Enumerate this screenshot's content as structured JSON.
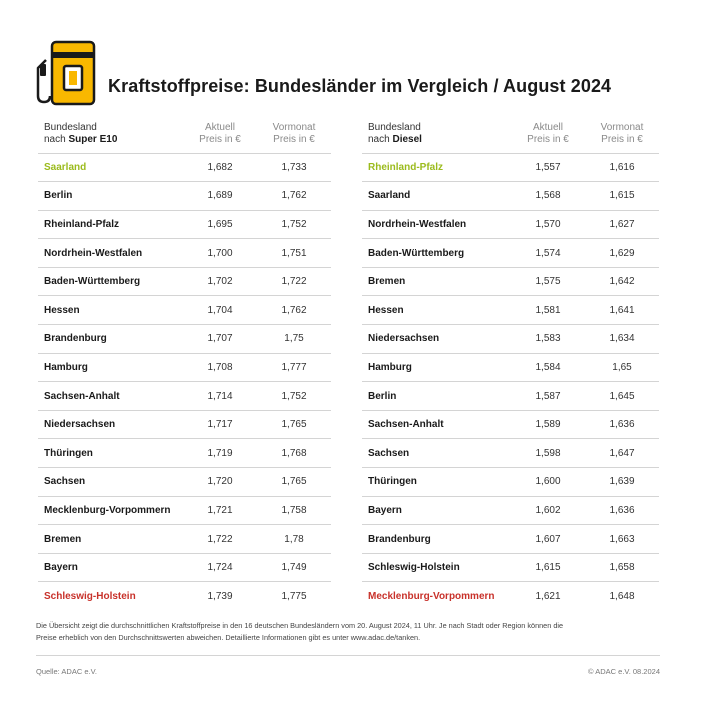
{
  "title": "Kraftstoffpreise: Bundesländer im Vergleich / August 2024",
  "colors": {
    "accent": "#F9B800",
    "best": "#9BBB1C",
    "worst": "#C8312A"
  },
  "icon": "fuel-pump-icon",
  "e10": {
    "header": {
      "line1": "Bundesland",
      "prefix": "nach ",
      "fuel": "Super E10",
      "current1": "Aktuell",
      "current2": "Preis in €",
      "prev1": "Vormonat",
      "prev2": "Preis in €"
    },
    "rows": [
      {
        "state": "Saarland",
        "current": "1,682",
        "previous": "1,733"
      },
      {
        "state": "Berlin",
        "current": "1,689",
        "previous": "1,762"
      },
      {
        "state": "Rheinland-Pfalz",
        "current": "1,695",
        "previous": "1,752"
      },
      {
        "state": "Nordrhein-Westfalen",
        "current": "1,700",
        "previous": "1,751"
      },
      {
        "state": "Baden-Württemberg",
        "current": "1,702",
        "previous": "1,722"
      },
      {
        "state": "Hessen",
        "current": "1,704",
        "previous": "1,762"
      },
      {
        "state": "Brandenburg",
        "current": "1,707",
        "previous": "1,75"
      },
      {
        "state": "Hamburg",
        "current": "1,708",
        "previous": "1,777"
      },
      {
        "state": "Sachsen-Anhalt",
        "current": "1,714",
        "previous": "1,752"
      },
      {
        "state": "Niedersachsen",
        "current": "1,717",
        "previous": "1,765"
      },
      {
        "state": "Thüringen",
        "current": "1,719",
        "previous": "1,768"
      },
      {
        "state": "Sachsen",
        "current": "1,720",
        "previous": "1,765"
      },
      {
        "state": "Mecklenburg-Vorpommern",
        "current": "1,721",
        "previous": "1,758"
      },
      {
        "state": "Bremen",
        "current": "1,722",
        "previous": "1,78"
      },
      {
        "state": "Bayern",
        "current": "1,724",
        "previous": "1,749"
      },
      {
        "state": "Schleswig-Holstein",
        "current": "1,739",
        "previous": "1,775"
      }
    ]
  },
  "diesel": {
    "header": {
      "line1": "Bundesland",
      "prefix": "nach ",
      "fuel": "Diesel",
      "current1": "Aktuell",
      "current2": "Preis in €",
      "prev1": "Vormonat",
      "prev2": "Preis in €"
    },
    "rows": [
      {
        "state": "Rheinland-Pfalz",
        "current": "1,557",
        "previous": "1,616"
      },
      {
        "state": "Saarland",
        "current": "1,568",
        "previous": "1,615"
      },
      {
        "state": "Nordrhein-Westfalen",
        "current": "1,570",
        "previous": "1,627"
      },
      {
        "state": "Baden-Württemberg",
        "current": "1,574",
        "previous": "1,629"
      },
      {
        "state": "Bremen",
        "current": "1,575",
        "previous": "1,642"
      },
      {
        "state": "Hessen",
        "current": "1,581",
        "previous": "1,641"
      },
      {
        "state": "Niedersachsen",
        "current": "1,583",
        "previous": "1,634"
      },
      {
        "state": "Hamburg",
        "current": "1,584",
        "previous": "1,65"
      },
      {
        "state": "Berlin",
        "current": "1,587",
        "previous": "1,645"
      },
      {
        "state": "Sachsen-Anhalt",
        "current": "1,589",
        "previous": "1,636"
      },
      {
        "state": "Sachsen",
        "current": "1,598",
        "previous": "1,647"
      },
      {
        "state": "Thüringen",
        "current": "1,600",
        "previous": "1,639"
      },
      {
        "state": "Bayern",
        "current": "1,602",
        "previous": "1,636"
      },
      {
        "state": "Brandenburg",
        "current": "1,607",
        "previous": "1,663"
      },
      {
        "state": "Schleswig-Holstein",
        "current": "1,615",
        "previous": "1,658"
      },
      {
        "state": "Mecklenburg-Vorpommern",
        "current": "1,621",
        "previous": "1,648"
      }
    ]
  },
  "footnote": {
    "line1": "Die Übersicht zeigt die durchschnittlichen Kraftstoffpreise in den 16 deutschen Bundesländern vom 20. August 2024, 11 Uhr. Je nach Stadt oder Region können die",
    "line2": "Preise erheblich von den Durchschnittswerten abweichen. Detaillierte Informationen gibt es unter www.adac.de/tanken."
  },
  "source": "Quelle: ADAC e.V.",
  "copyright": "© ADAC e.V. 08.2024"
}
